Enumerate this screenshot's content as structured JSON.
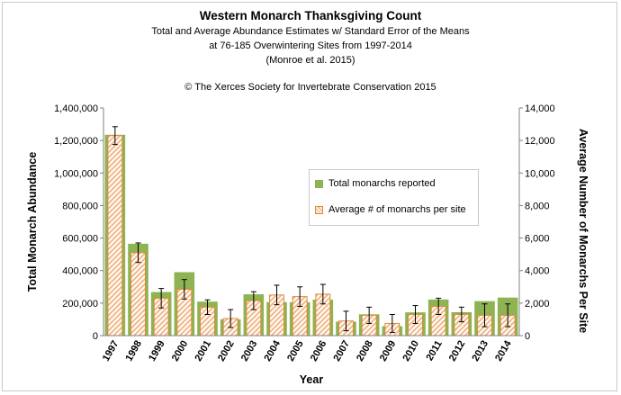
{
  "title": "Western Monarch Thanksgiving Count",
  "subtitle_lines": [
    "Total and Average Abundance Estimates w/ Standard Error of the Means",
    "at 76-185 Overwintering Sites from 1997-2014",
    "(Monroe et al. 2015)"
  ],
  "copyright": "© The Xerces Society for Invertebrate Conservation 2015",
  "colors": {
    "total": "#8db352",
    "average_fill": "#f2b888",
    "average_border": "#e08a3c",
    "axis": "#808080"
  },
  "chart_data": {
    "type": "bar",
    "title": "Western Monarch Thanksgiving Count",
    "xlabel": "Year",
    "ylabel": "Total Monarch Abundance",
    "y2label": "Average Number of Monarchs Per Site",
    "ylim": [
      0,
      1400000
    ],
    "y2lim": [
      0,
      14000
    ],
    "yticks": [
      "0",
      "200,000",
      "400,000",
      "600,000",
      "800,000",
      "1,000,000",
      "1,200,000",
      "1,400,000"
    ],
    "y2ticks": [
      "0",
      "2,000",
      "4,000",
      "6,000",
      "8,000",
      "10,000",
      "12,000",
      "14,000"
    ],
    "categories": [
      "1997",
      "1998",
      "1999",
      "2000",
      "2001",
      "2002",
      "2003",
      "2004",
      "2005",
      "2006",
      "2007",
      "2008",
      "2009",
      "2010",
      "2011",
      "2012",
      "2013",
      "2014"
    ],
    "series": [
      {
        "name": "Total monarchs reported",
        "axis": "left",
        "values": [
          1235000,
          565000,
          268000,
          390000,
          209000,
          100000,
          254000,
          206000,
          205000,
          221000,
          86000,
          131000,
          58000,
          143000,
          222000,
          144000,
          212000,
          234000
        ]
      },
      {
        "name": "Average # of monarchs per site",
        "axis": "right",
        "values": [
          12300,
          5100,
          2300,
          2850,
          1750,
          1050,
          2150,
          2500,
          2400,
          2550,
          900,
          1250,
          750,
          1300,
          1800,
          1300,
          1250,
          1250
        ],
        "error": [
          550,
          600,
          600,
          600,
          450,
          550,
          550,
          600,
          600,
          600,
          600,
          500,
          550,
          550,
          500,
          450,
          700,
          700
        ]
      }
    ],
    "legend_position": "center-right",
    "grid": false
  }
}
